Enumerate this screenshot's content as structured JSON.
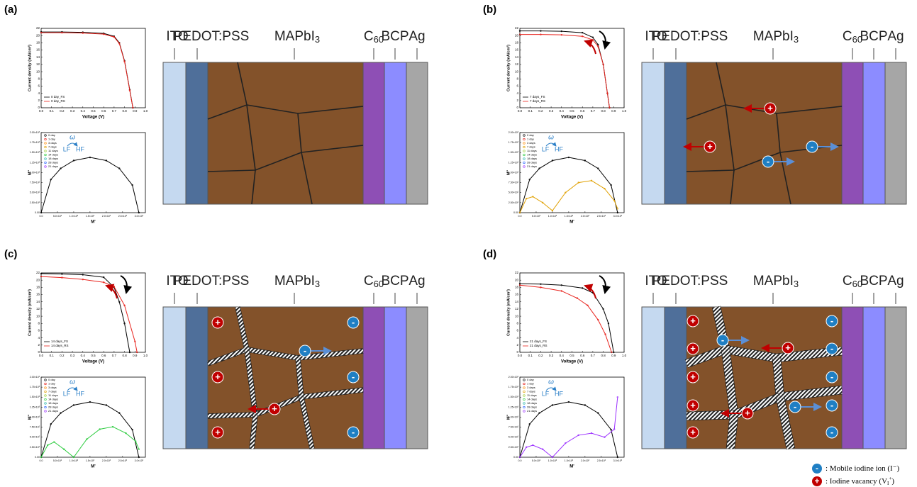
{
  "panels": [
    {
      "label": "(a)",
      "hysteresis_arrows": false,
      "boundary_style": "thin",
      "jv_series": [
        {
          "name": "0 day_FS",
          "color": "#000000",
          "x": [
            0,
            0.2,
            0.4,
            0.6,
            0.7,
            0.75,
            0.8,
            0.85,
            0.88
          ],
          "values": [
            21,
            21,
            20.9,
            20.6,
            19.8,
            18,
            13,
            5,
            0
          ]
        },
        {
          "name": "0 day_RS",
          "color": "#e8221c",
          "x": [
            0,
            0.2,
            0.4,
            0.6,
            0.7,
            0.75,
            0.8,
            0.85,
            0.88
          ],
          "values": [
            20.8,
            20.8,
            20.7,
            20.4,
            19.6,
            17.8,
            12.8,
            4.8,
            0
          ]
        }
      ],
      "nyquist_series": [
        {
          "name": "0 day",
          "color": "#000000",
          "x": [
            0,
            300,
            600,
            1000,
            1500,
            2000,
            2400,
            2800,
            3000
          ],
          "values": [
            0,
            828,
            1104,
            1301,
            1380,
            1301,
            1104,
            688,
            0
          ]
        }
      ],
      "ions": []
    },
    {
      "label": "(b)",
      "hysteresis_arrows": true,
      "boundary_style": "thin",
      "jv_series": [
        {
          "name": "7 days_FS",
          "color": "#000000",
          "x": [
            0,
            0.2,
            0.4,
            0.6,
            0.7,
            0.75,
            0.8,
            0.84,
            0.86
          ],
          "values": [
            21.3,
            21.3,
            21.2,
            20.8,
            19.5,
            17.5,
            12,
            4,
            0
          ]
        },
        {
          "name": "7 days_RS",
          "color": "#e8221c",
          "x": [
            0,
            0.2,
            0.4,
            0.6,
            0.7,
            0.75,
            0.8,
            0.84,
            0.86
          ],
          "values": [
            20.3,
            20.3,
            20.2,
            19.8,
            18.8,
            17,
            12,
            4,
            0
          ]
        }
      ],
      "nyquist_series": [
        {
          "name": "0 day",
          "color": "#000000",
          "x": [
            0,
            300,
            600,
            1000,
            1500,
            2000,
            2400,
            2800,
            3000
          ],
          "values": [
            0,
            828,
            1104,
            1301,
            1380,
            1301,
            1104,
            688,
            0
          ]
        },
        {
          "name": "7 days",
          "color": "#e0a000",
          "x": [
            0,
            200,
            400,
            700,
            1000,
            1400,
            1800,
            2200,
            2600,
            2900,
            3000
          ],
          "values": [
            0,
            350,
            400,
            250,
            50,
            500,
            750,
            800,
            600,
            300,
            100
          ]
        }
      ],
      "ions": [
        "+",
        "+",
        "-",
        "-"
      ]
    },
    {
      "label": "(c)",
      "hysteresis_arrows": true,
      "boundary_style": "striped",
      "jv_series": [
        {
          "name": "14 days_FS",
          "color": "#000000",
          "x": [
            0,
            0.2,
            0.4,
            0.6,
            0.7,
            0.75,
            0.8,
            0.85
          ],
          "values": [
            21.8,
            21.7,
            21.5,
            20.8,
            18,
            14,
            8,
            0
          ]
        },
        {
          "name": "14 days_RS",
          "color": "#e8221c",
          "x": [
            0,
            0.2,
            0.4,
            0.6,
            0.7,
            0.8,
            0.9,
            0.92
          ],
          "values": [
            21,
            20.7,
            20.2,
            19.4,
            18.2,
            13,
            3,
            0
          ]
        }
      ],
      "nyquist_series": [
        {
          "name": "0 day",
          "color": "#000000",
          "x": [
            0,
            300,
            600,
            1000,
            1500,
            2000,
            2400,
            2800,
            3000
          ],
          "values": [
            0,
            828,
            1104,
            1301,
            1380,
            1301,
            1104,
            688,
            0
          ]
        },
        {
          "name": "14 days",
          "color": "#2ecc40",
          "x": [
            0,
            200,
            400,
            700,
            1000,
            1400,
            1800,
            2200,
            2600,
            2900,
            3000
          ],
          "values": [
            0,
            300,
            380,
            200,
            0,
            450,
            700,
            760,
            600,
            400,
            200
          ]
        }
      ],
      "ions": [
        "+",
        "+",
        "+",
        "-",
        "-",
        "-",
        "-",
        "+"
      ]
    },
    {
      "label": "(d)",
      "hysteresis_arrows": true,
      "boundary_style": "wide-striped",
      "jv_series": [
        {
          "name": "21 days_FS",
          "color": "#000000",
          "x": [
            0,
            0.2,
            0.4,
            0.6,
            0.7,
            0.8,
            0.85,
            0.9
          ],
          "values": [
            19,
            18.9,
            18.6,
            17.8,
            16.5,
            12,
            8,
            0
          ]
        },
        {
          "name": "21 days_RS",
          "color": "#e8221c",
          "x": [
            0,
            0.2,
            0.4,
            0.55,
            0.65,
            0.75,
            0.82,
            0.88
          ],
          "values": [
            18.6,
            18,
            17,
            15,
            13,
            9,
            5,
            0
          ]
        }
      ],
      "nyquist_series": [
        {
          "name": "0 day",
          "color": "#000000",
          "x": [
            0,
            300,
            600,
            1000,
            1500,
            2000,
            2400,
            2800,
            3000
          ],
          "values": [
            0,
            828,
            1104,
            1301,
            1380,
            1301,
            1104,
            688,
            0
          ]
        },
        {
          "name": "21 days",
          "color": "#9b30ff",
          "x": [
            0,
            200,
            400,
            700,
            1000,
            1400,
            1800,
            2200,
            2600,
            2900,
            3000
          ],
          "values": [
            0,
            250,
            300,
            200,
            0,
            350,
            550,
            600,
            500,
            700,
            1500
          ]
        }
      ],
      "ions": [
        "+",
        "+",
        "+",
        "+",
        "+",
        "-",
        "-",
        "-",
        "-",
        "-",
        "-",
        "+",
        "-",
        "+"
      ]
    }
  ],
  "jv_axis": {
    "xlabel": "Voltage (V)",
    "ylabel": "Current density (mA/cm²)",
    "xlim": [
      0,
      1.0
    ],
    "ylim": [
      0,
      22
    ],
    "xticks": [
      {
        "value": 0,
        "label": "0.0"
      },
      0.1,
      0.2,
      0.3,
      0.4,
      0.5,
      0.6,
      0.7,
      0.8,
      0.9,
      {
        "value": 1,
        "label": "1.0"
      }
    ],
    "yticks": [
      0,
      2,
      4,
      6,
      8,
      10,
      12,
      14,
      16,
      18,
      20,
      22
    ]
  },
  "nyquist_axis": {
    "xlabel": "M'",
    "ylabel": "M''",
    "xlim": [
      0,
      3200
    ],
    "ylim": [
      0,
      2000
    ],
    "xticks": [
      {
        "value": 0,
        "label": "0.0"
      },
      {
        "value": 500,
        "label": "5.0×10²"
      },
      {
        "value": 1000,
        "label": "1.0×10³"
      },
      {
        "value": 1500,
        "label": "1.5×10³"
      },
      {
        "value": 2000,
        "label": "2.0×10³"
      },
      {
        "value": 2500,
        "label": "2.5×10³"
      },
      {
        "value": 3000,
        "label": "3.0×10³"
      }
    ],
    "yticks": [
      {
        "value": 0,
        "label": "0.00"
      },
      {
        "value": 250,
        "label": "2.50×10²"
      },
      {
        "value": 500,
        "label": "5.00×10²"
      },
      {
        "value": 750,
        "label": "7.50×10²"
      },
      {
        "value": 1000,
        "label": "1.00×10³"
      },
      {
        "value": 1250,
        "label": "1.25×10³"
      },
      {
        "value": 1500,
        "label": "1.50×10³"
      },
      {
        "value": 1750,
        "label": "1.75×10³"
      },
      {
        "value": 2000,
        "label": "2.00×10³"
      }
    ],
    "legend": [
      {
        "name": "0 day",
        "color": "#000000"
      },
      {
        "name": "1 day",
        "color": "#e8221c"
      },
      {
        "name": "3 days",
        "color": "#ff8c00"
      },
      {
        "name": "7 days",
        "color": "#e0a000"
      },
      {
        "name": "11 days",
        "color": "#9acd32"
      },
      {
        "name": "14 days",
        "color": "#2ecc40"
      },
      {
        "name": "18 days",
        "color": "#20b2aa"
      },
      {
        "name": "28 days",
        "color": "#2060ff"
      },
      {
        "name": "21 days",
        "color": "#9b30ff"
      }
    ],
    "omega": "ω",
    "lf": "LF",
    "hf": "HF"
  },
  "device_layers": [
    {
      "text": "ITO",
      "color": "#c5d9f0"
    },
    {
      "text": "PEDOT:PSS",
      "color": "#4f6f9a"
    },
    {
      "text": "MAPbI",
      "sub": "3",
      "color": "#83522a"
    },
    {
      "text": "C",
      "sub": "60",
      "color": "#8e4fb5"
    },
    {
      "text": "BCP",
      "color": "#8c8cff"
    },
    {
      "text": "Ag",
      "color": "#a6a6a6"
    }
  ],
  "legend": {
    "ion": {
      "symbol": "-",
      "color": "#1f7fc4",
      "text": ": Mobile iodine ion (I⁻)"
    },
    "vacancy": {
      "symbol": "+",
      "color": "#c00000",
      "text": ": Iodine vacancy (V",
      "sub": "I",
      "sup": "+",
      "close": ")"
    }
  }
}
